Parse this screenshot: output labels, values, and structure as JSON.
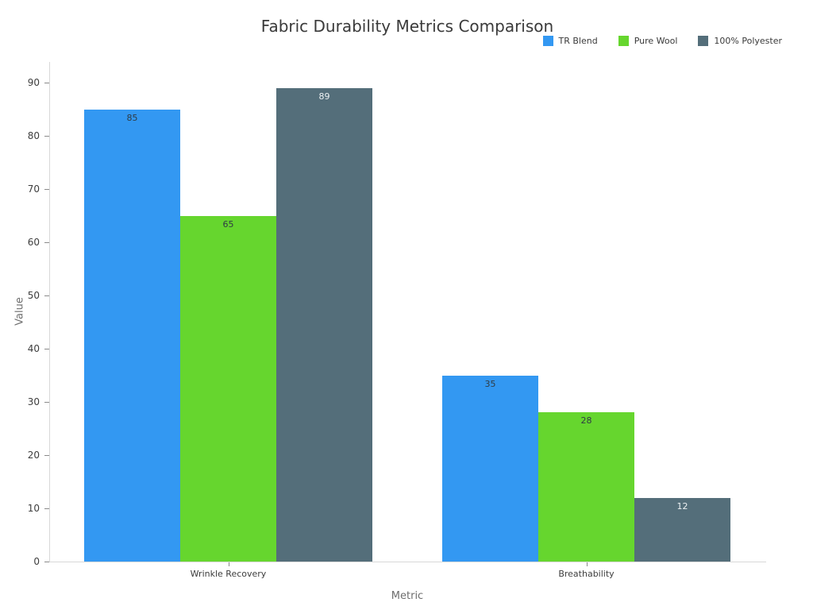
{
  "chart_data": {
    "type": "bar",
    "title": "Fabric Durability Metrics Comparison",
    "xlabel": "Metric",
    "ylabel": "Value",
    "categories": [
      "Wrinkle Recovery",
      "Breathability"
    ],
    "series": [
      {
        "name": "TR Blend",
        "color": "#3398f2",
        "label_color": "#2f3b45",
        "values": [
          85,
          35
        ]
      },
      {
        "name": "Pure Wool",
        "color": "#66d62e",
        "label_color": "#2f3b45",
        "values": [
          65,
          28
        ]
      },
      {
        "name": "100% Polyester",
        "color": "#546e7a",
        "label_color": "#edf1f3",
        "values": [
          89,
          12
        ]
      }
    ],
    "yticks": [
      0,
      10,
      20,
      30,
      40,
      50,
      60,
      70,
      80,
      90
    ],
    "ylim": [
      0,
      93.9
    ],
    "grid": false,
    "bar_labels": true,
    "legend_position": "top-right"
  },
  "colors": {
    "background": "#ffffff",
    "axis_line": "#d8d8d8",
    "tick_mark": "#8a8a8a",
    "tick_label": "#3d3d3d",
    "axis_title": "#6e6e6e",
    "title": "#3a3a3a"
  }
}
